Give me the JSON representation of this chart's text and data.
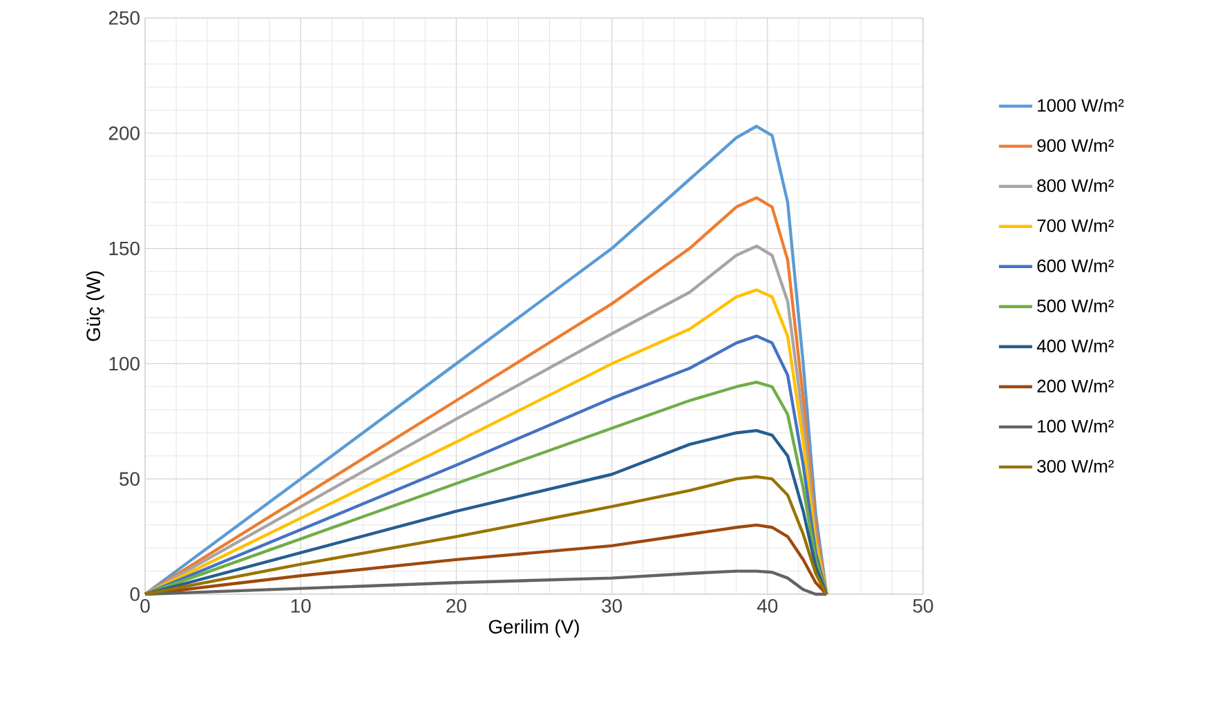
{
  "chart_data": {
    "type": "line",
    "xlabel": "Gerilim (V)",
    "ylabel": "Güç (W)",
    "xlim": [
      0,
      50
    ],
    "ylim": [
      0,
      250
    ],
    "xticks": [
      0,
      10,
      20,
      30,
      40,
      50
    ],
    "yticks": [
      0,
      50,
      100,
      150,
      200,
      250
    ],
    "grid": true,
    "legend": "right",
    "marker": "none",
    "line_style": "solid",
    "x": [
      0,
      10,
      20,
      30,
      35,
      38,
      39.3,
      40.3,
      41.3,
      42.3,
      43.1,
      43.8
    ],
    "series": [
      {
        "name": "1000 W/m²",
        "color": "#5b9bd5",
        "values": [
          0,
          50,
          100,
          150,
          180,
          198,
          203,
          199,
          170,
          100,
          35,
          0
        ]
      },
      {
        "name": "900 W/m²",
        "color": "#ed7d31",
        "values": [
          0,
          42,
          84,
          126,
          150,
          168,
          172,
          168,
          145,
          85,
          30,
          0
        ]
      },
      {
        "name": "800 W/m²",
        "color": "#a5a5a5",
        "values": [
          0,
          38,
          76,
          113,
          131,
          147,
          151,
          147,
          127,
          75,
          25,
          0
        ]
      },
      {
        "name": "700 W/m²",
        "color": "#ffc000",
        "values": [
          0,
          33,
          66,
          100,
          115,
          129,
          132,
          129,
          112,
          66,
          22,
          0
        ]
      },
      {
        "name": "600 W/m²",
        "color": "#4472c4",
        "values": [
          0,
          28,
          56,
          85,
          98,
          109,
          112,
          109,
          95,
          56,
          18,
          0
        ]
      },
      {
        "name": "500 W/m²",
        "color": "#70ad47",
        "values": [
          0,
          24,
          48,
          72,
          84,
          90,
          92,
          90,
          78,
          46,
          15,
          0
        ]
      },
      {
        "name": "400 W/m²",
        "color": "#255e91",
        "values": [
          0,
          18,
          36,
          52,
          65,
          70,
          71,
          69,
          60,
          36,
          12,
          0
        ]
      },
      {
        "name": "200 W/m²",
        "color": "#9e480e",
        "values": [
          0,
          8,
          15,
          21,
          26,
          29,
          30,
          29,
          25,
          15,
          5,
          0
        ]
      },
      {
        "name": "100 W/m²",
        "color": "#636363",
        "values": [
          0,
          2.5,
          5,
          7,
          9,
          10,
          10,
          9.5,
          7,
          2,
          0,
          0
        ]
      },
      {
        "name": "300 W/m²",
        "color": "#997300",
        "values": [
          0,
          13,
          25,
          38,
          45,
          50,
          51,
          50,
          43,
          26,
          9,
          0
        ]
      }
    ]
  }
}
